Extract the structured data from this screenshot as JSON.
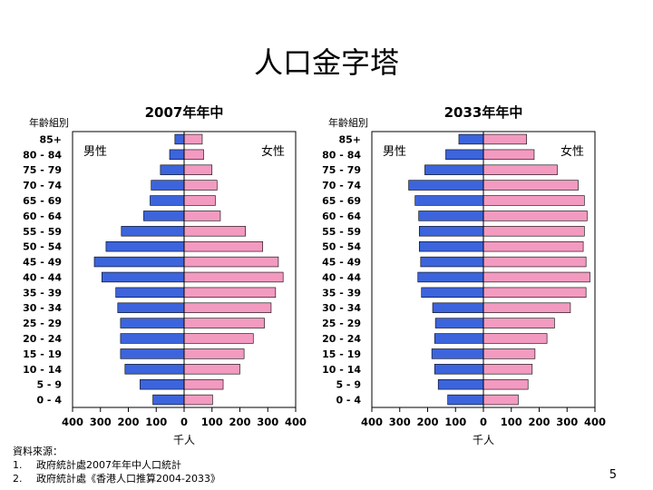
{
  "slide": {
    "title": "人口金字塔",
    "page_number": "5",
    "source_heading": "資料來源：",
    "sources": [
      {
        "num": "1.",
        "text": "政府統計處2007年年中人口統計"
      },
      {
        "num": "2.",
        "text": "政府統計處《香港人口推算2004-2033》"
      }
    ]
  },
  "chart_data": [
    {
      "type": "bar",
      "orientation": "horizontal-pyramid",
      "title": "2007年年中",
      "age_axis_label": "年齡組別",
      "xlabel": "千人",
      "xlim": [
        -400,
        400
      ],
      "x_ticks": [
        400,
        300,
        200,
        100,
        0,
        100,
        200,
        300,
        400
      ],
      "categories": [
        "85+",
        "80 - 84",
        "75 - 79",
        "70 - 74",
        "65 - 69",
        "60 - 64",
        "55 - 59",
        "50 - 54",
        "45 - 49",
        "40 - 44",
        "35 - 39",
        "30 - 34",
        "25 - 29",
        "20 - 24",
        "15 - 19",
        "10 - 14",
        "5 - 9",
        "0 - 4"
      ],
      "series": [
        {
          "name": "男性",
          "side": "left",
          "color": "#3c64dc",
          "values": [
            33,
            52,
            85,
            118,
            122,
            145,
            225,
            280,
            322,
            295,
            245,
            238,
            228,
            228,
            228,
            212,
            158,
            112
          ]
        },
        {
          "name": "女性",
          "side": "right",
          "color": "#f39ac0",
          "values": [
            65,
            70,
            100,
            118,
            112,
            130,
            220,
            282,
            338,
            355,
            328,
            312,
            288,
            248,
            215,
            200,
            140,
            102
          ]
        }
      ],
      "grid": false
    },
    {
      "type": "bar",
      "orientation": "horizontal-pyramid",
      "title": "2033年年中",
      "age_axis_label": "年齡組別",
      "xlabel": "千人",
      "xlim": [
        -400,
        400
      ],
      "x_ticks": [
        400,
        300,
        200,
        100,
        0,
        100,
        200,
        300,
        400
      ],
      "categories": [
        "85+",
        "80 - 84",
        "75 - 79",
        "70 - 74",
        "65 - 69",
        "60 - 64",
        "55 - 59",
        "50 - 54",
        "45 - 49",
        "40 - 44",
        "35 - 39",
        "30 - 34",
        "25 - 29",
        "20 - 24",
        "15 - 19",
        "10 - 14",
        "5 - 9",
        "0 - 4"
      ],
      "series": [
        {
          "name": "男性",
          "side": "left",
          "color": "#3c64dc",
          "values": [
            88,
            135,
            210,
            268,
            245,
            232,
            230,
            230,
            225,
            235,
            222,
            182,
            172,
            175,
            185,
            175,
            162,
            128
          ]
        },
        {
          "name": "女性",
          "side": "right",
          "color": "#f39ac0",
          "values": [
            155,
            182,
            265,
            340,
            362,
            372,
            362,
            358,
            368,
            382,
            368,
            312,
            255,
            228,
            185,
            175,
            160,
            125
          ]
        }
      ],
      "grid": false
    }
  ]
}
